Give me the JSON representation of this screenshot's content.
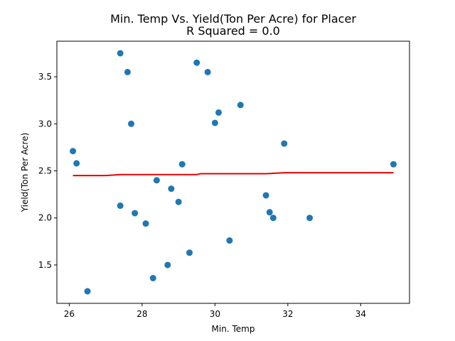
{
  "chart_data": {
    "type": "scatter",
    "title": "Min. Temp Vs. Yield(Ton Per Acre) for Placer",
    "subtitle": "R Squared =  0.0",
    "xlabel": "Min. Temp",
    "ylabel": "Yield(Ton Per Acre)",
    "xlim": [
      25.66,
      35.34
    ],
    "ylim": [
      1.092,
      3.878
    ],
    "x_ticks": [
      26,
      28,
      30,
      32,
      34
    ],
    "x_tick_labels": [
      "26",
      "28",
      "30",
      "32",
      "34"
    ],
    "y_ticks": [
      1.5,
      2.0,
      2.5,
      3.0,
      3.5
    ],
    "y_tick_labels": [
      "1.5",
      "2.0",
      "2.5",
      "3.0",
      "3.5"
    ],
    "grid": false,
    "points": [
      {
        "x": 26.1,
        "y": 2.71
      },
      {
        "x": 26.2,
        "y": 2.58
      },
      {
        "x": 26.5,
        "y": 1.22
      },
      {
        "x": 27.4,
        "y": 3.75
      },
      {
        "x": 27.4,
        "y": 2.13
      },
      {
        "x": 27.6,
        "y": 3.55
      },
      {
        "x": 27.7,
        "y": 3.0
      },
      {
        "x": 27.8,
        "y": 2.05
      },
      {
        "x": 28.1,
        "y": 1.94
      },
      {
        "x": 28.3,
        "y": 1.36
      },
      {
        "x": 28.4,
        "y": 2.4
      },
      {
        "x": 28.7,
        "y": 1.5
      },
      {
        "x": 28.8,
        "y": 2.31
      },
      {
        "x": 29.0,
        "y": 2.17
      },
      {
        "x": 29.1,
        "y": 2.57
      },
      {
        "x": 29.3,
        "y": 1.63
      },
      {
        "x": 29.5,
        "y": 3.65
      },
      {
        "x": 29.8,
        "y": 3.55
      },
      {
        "x": 30.0,
        "y": 3.01
      },
      {
        "x": 30.1,
        "y": 3.12
      },
      {
        "x": 30.4,
        "y": 1.76
      },
      {
        "x": 30.7,
        "y": 3.2
      },
      {
        "x": 31.4,
        "y": 2.24
      },
      {
        "x": 31.5,
        "y": 2.06
      },
      {
        "x": 31.6,
        "y": 2.0
      },
      {
        "x": 31.9,
        "y": 2.79
      },
      {
        "x": 32.6,
        "y": 2.0
      },
      {
        "x": 34.9,
        "y": 2.57
      }
    ],
    "trend_line": [
      {
        "x": 26.1,
        "y": 2.45
      },
      {
        "x": 27.0,
        "y": 2.45
      },
      {
        "x": 27.4,
        "y": 2.46
      },
      {
        "x": 29.5,
        "y": 2.46
      },
      {
        "x": 29.6,
        "y": 2.47
      },
      {
        "x": 31.4,
        "y": 2.47
      },
      {
        "x": 31.9,
        "y": 2.48
      },
      {
        "x": 34.9,
        "y": 2.48
      }
    ],
    "colors": {
      "points": "#1f77b4",
      "trend_line": "#e60000",
      "axes": "#000000"
    }
  }
}
